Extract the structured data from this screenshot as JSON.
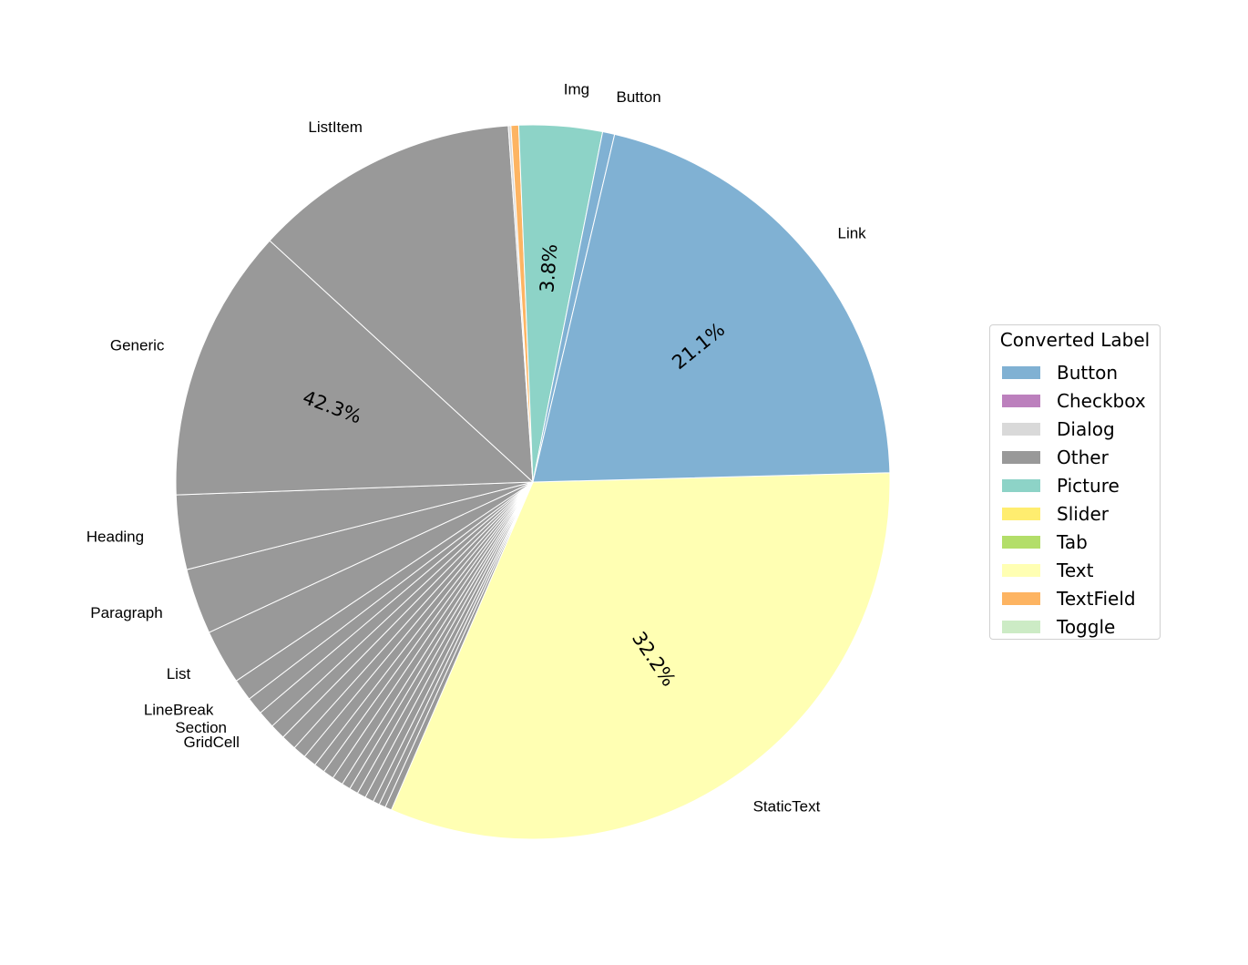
{
  "chart_data": {
    "type": "pie",
    "slices": [
      {
        "label": "StaticText",
        "value": 32.2,
        "group": "Text",
        "autopct": "32.2%"
      },
      {
        "label": "",
        "value": 0.3,
        "group": "Other"
      },
      {
        "label": "",
        "value": 0.3,
        "group": "Other"
      },
      {
        "label": "",
        "value": 0.3,
        "group": "Other"
      },
      {
        "label": "",
        "value": 0.4,
        "group": "Other"
      },
      {
        "label": "",
        "value": 0.4,
        "group": "Other"
      },
      {
        "label": "",
        "value": 0.4,
        "group": "Other"
      },
      {
        "label": "",
        "value": 0.4,
        "group": "Other"
      },
      {
        "label": "",
        "value": 0.5,
        "group": "Other"
      },
      {
        "label": "",
        "value": 0.5,
        "group": "Other"
      },
      {
        "label": "",
        "value": 0.5,
        "group": "Other"
      },
      {
        "label": "",
        "value": 0.6,
        "group": "Other"
      },
      {
        "label": "",
        "value": 0.6,
        "group": "Other"
      },
      {
        "label": "",
        "value": 0.7,
        "group": "Other"
      },
      {
        "label": "",
        "value": 0.7,
        "group": "Other"
      },
      {
        "label": "GridCell",
        "value": 0.8,
        "group": "Other"
      },
      {
        "label": "Section",
        "value": 0.8,
        "group": "Other"
      },
      {
        "label": "LineBreak",
        "value": 1.0,
        "group": "Other"
      },
      {
        "label": "List",
        "value": 2.5,
        "group": "Other"
      },
      {
        "label": "Paragraph",
        "value": 3.0,
        "group": "Other"
      },
      {
        "label": "Heading",
        "value": 3.4,
        "group": "Other"
      },
      {
        "label": "Generic",
        "value": 12.5,
        "group": "Other",
        "autopct": "42.3%"
      },
      {
        "label": "ListItem",
        "value": 12.2,
        "group": "Other"
      },
      {
        "label": "",
        "value": 0.12,
        "group": "Dialog"
      },
      {
        "label": "",
        "value": 0.35,
        "group": "TextField"
      },
      {
        "label": "Img",
        "value": 3.8,
        "group": "Picture",
        "autopct": "3.8%"
      },
      {
        "label": "Button",
        "value": 0.55,
        "group": "Button"
      },
      {
        "label": "Link",
        "value": 21.1,
        "group": "Button",
        "autopct": "21.1%"
      }
    ],
    "start_angle_deg": -1.5,
    "direction": "clockwise",
    "legend": {
      "title": "Converted Label",
      "location": "right",
      "entries": [
        {
          "label": "Button",
          "color": "#80b1d3"
        },
        {
          "label": "Checkbox",
          "color": "#bc80bd"
        },
        {
          "label": "Dialog",
          "color": "#d9d9d9"
        },
        {
          "label": "Other",
          "color": "#999999"
        },
        {
          "label": "Picture",
          "color": "#8dd3c7"
        },
        {
          "label": "Slider",
          "color": "#ffed6f"
        },
        {
          "label": "Tab",
          "color": "#b3de69"
        },
        {
          "label": "Text",
          "color": "#ffffb3"
        },
        {
          "label": "TextField",
          "color": "#fdb462"
        },
        {
          "label": "Toggle",
          "color": "#ccebc5"
        }
      ]
    }
  }
}
